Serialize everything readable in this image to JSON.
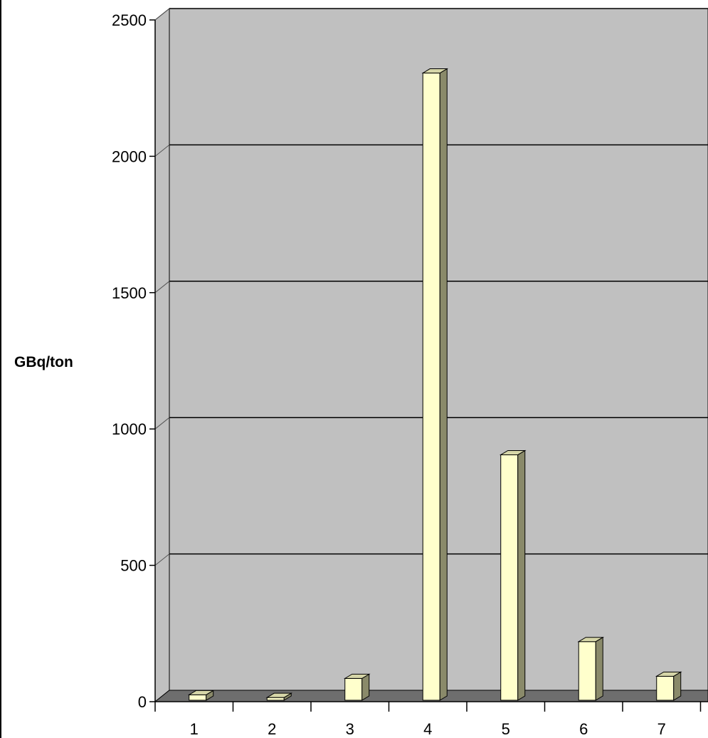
{
  "chart_data": {
    "type": "bar",
    "style": "3d",
    "categories": [
      "1",
      "2",
      "3",
      "4",
      "5",
      "6",
      "7"
    ],
    "values": [
      20,
      10,
      80,
      2300,
      900,
      215,
      88
    ],
    "title": "",
    "xlabel": "",
    "ylabel": "GBq/ton",
    "ylim": [
      0,
      2500
    ],
    "yticks": [
      "0",
      "500",
      "1000",
      "1500",
      "2000",
      "2500"
    ],
    "grid": true,
    "legend": "none",
    "colors": {
      "bar_front": "#ffffcc",
      "bar_side": "#8a8a6a",
      "bar_top": "#d6d6a8",
      "wall": "#c0c0c0",
      "floor": "#6e6e6e",
      "gridline": "#000000"
    }
  }
}
